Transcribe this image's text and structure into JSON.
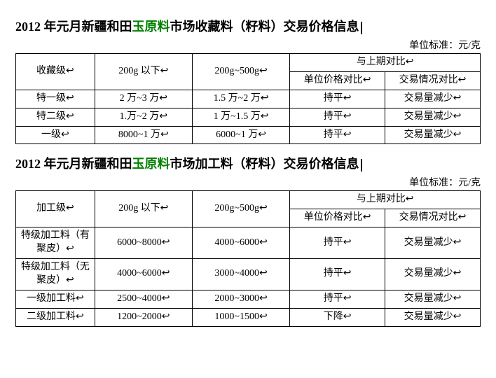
{
  "table1": {
    "title_parts": [
      "2012 年元月新疆和田",
      "玉原料",
      "市场收藏料（籽料）交易价格信息"
    ],
    "unit": "单位标准：元/克",
    "headers": {
      "grade": "收藏级↩",
      "w1": "200g 以下↩",
      "w2": "200g~500g↩",
      "compare": "与上期对比↩",
      "price": "单位价格对比↩",
      "deal": "交易情况对比↩"
    },
    "rows": [
      {
        "g": "特一级↩",
        "w1": "2 万~3 万↩",
        "w2": "1.5 万~2 万↩",
        "p": "持平↩",
        "d": "交易量减少↩"
      },
      {
        "g": "特二级↩",
        "w1": "1.万~2 万↩",
        "w2": "1 万~1.5 万↩",
        "p": "持平↩",
        "d": "交易量减少↩"
      },
      {
        "g": "一级↩",
        "w1": "8000~1 万↩",
        "w2": "6000~1 万↩",
        "p": "持平↩",
        "d": "交易量减少↩"
      }
    ]
  },
  "table2": {
    "title_parts": [
      "2012 年元月新疆和田",
      "玉原料",
      "市场加工料（籽料）交易价格信息"
    ],
    "unit": "单位标准：元/克",
    "headers": {
      "grade": "加工级↩",
      "w1": "200g 以下↩",
      "w2": "200g~500g↩",
      "compare": "与上期对比↩",
      "price": "单位价格对比↩",
      "deal": "交易情况对比↩"
    },
    "rows": [
      {
        "g": "特级加工料（有聚皮）↩",
        "w1": "6000~8000↩",
        "w2": "4000~6000↩",
        "p": "持平↩",
        "d": "交易量减少↩"
      },
      {
        "g": "特级加工料（无聚皮）↩",
        "w1": "4000~6000↩",
        "w2": "3000~4000↩",
        "p": "持平↩",
        "d": "交易量减少↩"
      },
      {
        "g": "一级加工料↩",
        "w1": "2500~4000↩",
        "w2": "2000~3000↩",
        "p": "持平↩",
        "d": "交易量减少↩"
      },
      {
        "g": "二级加工料↩",
        "w1": "1200~2000↩",
        "w2": "1000~1500↩",
        "p": "下降↩",
        "d": "交易量减少↩"
      }
    ]
  }
}
